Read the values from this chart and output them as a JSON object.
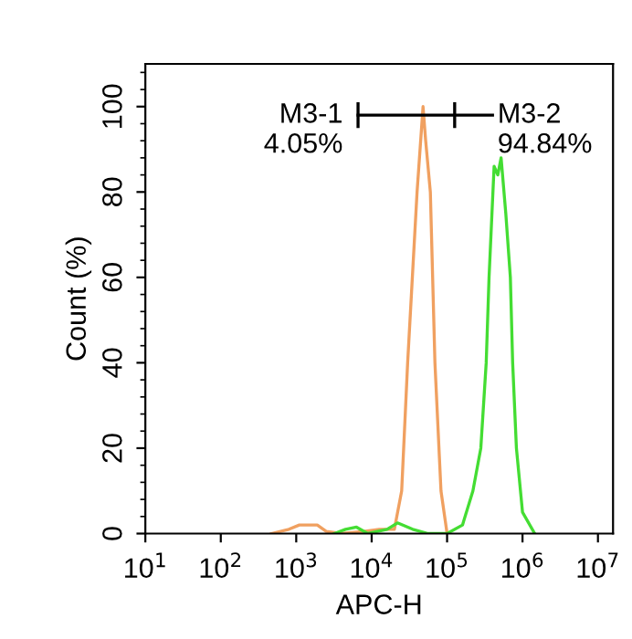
{
  "chart_data": {
    "type": "line",
    "xlabel": "APC-H",
    "ylabel": "Count (%)",
    "log": "x",
    "xlim": [
      10,
      15848932
    ],
    "xticks": [
      {
        "value": 10,
        "label": "10$^{1}$"
      },
      {
        "value": 100,
        "label": "10$^{2}$"
      },
      {
        "value": 1000,
        "label": "10$^{3}$"
      },
      {
        "value": 10000,
        "label": "10$^{4}$"
      },
      {
        "value": 100000,
        "label": "10$^{5}$"
      },
      {
        "value": 1000000,
        "label": "10$^{6}$"
      },
      {
        "value": 10000000,
        "label": "10$^{7}$"
      }
    ],
    "ylim": [
      0,
      110
    ],
    "yticks": [
      0,
      20,
      40,
      60,
      80,
      100
    ],
    "legend": false,
    "series": [
      {
        "color": "#f0a060",
        "x": [
          470,
          800,
          1100,
          1900,
          2500,
          4000,
          7900,
          12600,
          20000,
          25000,
          30000,
          40000,
          48000,
          52000,
          60000,
          69000,
          83000,
          100000
        ],
        "values": [
          0,
          1,
          2,
          2,
          0.5,
          0,
          0.5,
          1,
          1,
          10,
          40,
          80,
          100,
          92,
          80,
          40,
          10,
          0
        ]
      },
      {
        "color": "#44dd33",
        "x": [
          3200,
          4500,
          6300,
          8900,
          16000,
          22000,
          35000,
          56000,
          100000,
          160000,
          220000,
          280000,
          330000,
          360000,
          420000,
          470000,
          520000,
          600000,
          690000,
          740000,
          830000,
          1000000,
          1450000
        ],
        "values": [
          0,
          1,
          1.5,
          0,
          1,
          2.5,
          1,
          0,
          0,
          2,
          10,
          20,
          40,
          60,
          86,
          84,
          88,
          75,
          60,
          40,
          20,
          5,
          0
        ]
      },
      {
        "color": "#000000",
        "x": [
          6600,
          126000,
          400000
        ],
        "values": [
          98,
          98,
          98
        ],
        "errors": [
          3,
          3,
          null
        ]
      }
    ],
    "annotations": [
      {
        "text": "M3-1\n4.05%",
        "x": 6600,
        "y": 98
      },
      {
        "text": "M3-2\n94.84%",
        "x": 400000,
        "y": 98
      }
    ]
  }
}
